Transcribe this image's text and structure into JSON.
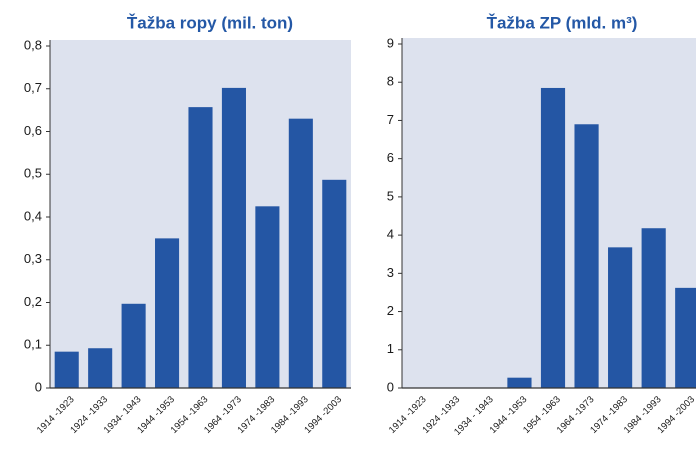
{
  "chart_data": [
    {
      "type": "bar",
      "title": "Ťažba ropy (mil. ton)",
      "color": "#2456a4",
      "categories": [
        "1914 -1923",
        "1924 -1933",
        "1934- 1943",
        "1944 -1953",
        "1954 -1963",
        "1964 -1973",
        "1974 -1983",
        "1984 -1993",
        "1994 -2003"
      ],
      "values": [
        0.085,
        0.093,
        0.197,
        0.35,
        0.657,
        0.702,
        0.425,
        0.63,
        0.487
      ],
      "ylim": [
        0,
        0.8
      ],
      "yticks": [
        0,
        {
          "value": 0.1,
          "label": "0,1"
        },
        {
          "value": 0.2,
          "label": "0,2"
        },
        {
          "value": 0.3,
          "label": "0,3"
        },
        {
          "value": 0.4,
          "label": "0,4"
        },
        {
          "value": 0.5,
          "label": "0,5"
        },
        {
          "value": 0.6,
          "label": "0,6"
        },
        {
          "value": 0.7,
          "label": "0,7"
        },
        {
          "value": 0.8,
          "label": "0,8"
        }
      ],
      "grid": false
    },
    {
      "type": "bar",
      "title": "Ťažba ZP (mld. m³)",
      "color": "#2456a4",
      "categories": [
        "1914 -1923",
        "1924 -1933",
        "1934 - 1943",
        "1944 -1953",
        "1954 -1963",
        "1964 -1973",
        "1974 -1983",
        "1984 -1993",
        "1994 -2003"
      ],
      "values": [
        0,
        0,
        0,
        0.27,
        7.85,
        6.9,
        3.68,
        4.18,
        2.62
      ],
      "ylim": [
        0,
        9
      ],
      "yticks": [
        0,
        1,
        2,
        3,
        4,
        5,
        6,
        7,
        8,
        9
      ],
      "grid": false
    }
  ]
}
